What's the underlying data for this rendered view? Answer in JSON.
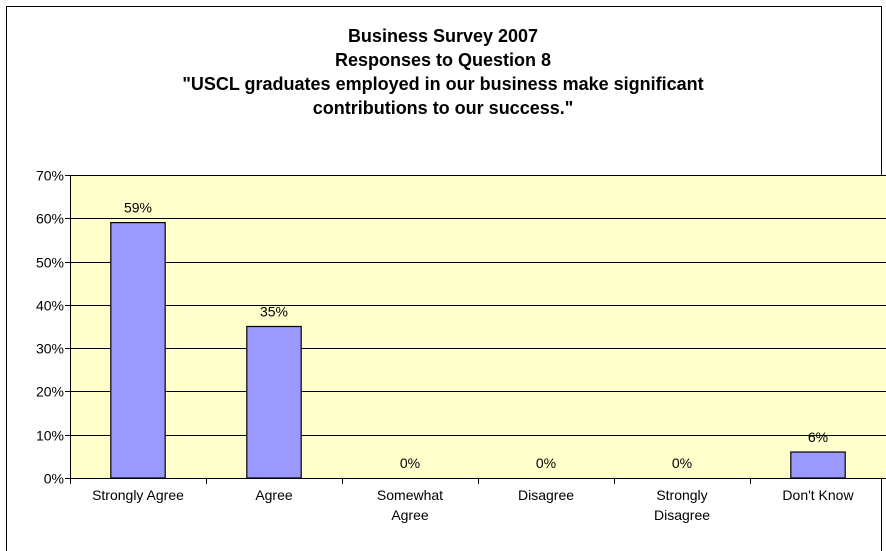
{
  "chart_data": {
    "type": "bar",
    "title_lines": [
      "Business Survey 2007",
      "Responses to Question 8",
      "\"USCL graduates employed in our business make significant",
      "contributions to our success.\""
    ],
    "categories": [
      [
        "Strongly Agree"
      ],
      [
        "Agree"
      ],
      [
        "Somewhat",
        "Agree"
      ],
      [
        "Disagree"
      ],
      [
        "Strongly",
        "Disagree"
      ],
      [
        "Don't Know"
      ]
    ],
    "values": [
      59,
      35,
      0,
      0,
      0,
      6
    ],
    "data_labels": [
      "59%",
      "35%",
      "0%",
      "0%",
      "0%",
      "6%"
    ],
    "ylim": [
      0,
      70
    ],
    "yticks": [
      0,
      10,
      20,
      30,
      40,
      50,
      60,
      70
    ],
    "ytick_labels": [
      "0%",
      "10%",
      "20%",
      "30%",
      "40%",
      "50%",
      "60%",
      "70%"
    ],
    "grid": true,
    "colors": {
      "plot_background": "#FFFFCC",
      "bar_fill": "#9999FF",
      "bar_edge": "#000000"
    }
  }
}
